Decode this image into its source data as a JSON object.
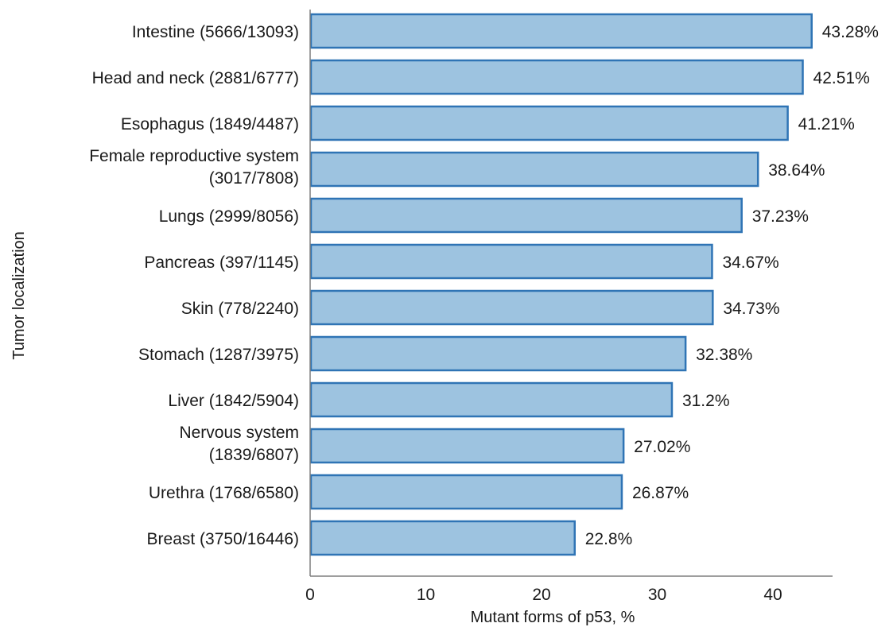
{
  "chart_data": {
    "type": "bar",
    "orientation": "horizontal",
    "categories": [
      [
        "Intestine (5666/13093)"
      ],
      [
        "Head and neck (2881/6777)"
      ],
      [
        "Esophagus (1849/4487)"
      ],
      [
        "Female reproductive system",
        "(3017/7808)"
      ],
      [
        "Lungs (2999/8056)"
      ],
      [
        "Pancreas (397/1145)"
      ],
      [
        "Skin (778/2240)"
      ],
      [
        "Stomach (1287/3975)"
      ],
      [
        "Liver (1842/5904)"
      ],
      [
        "Nervous system",
        "(1839/6807)"
      ],
      [
        "Urethra (1768/6580)"
      ],
      [
        "Breast (3750/16446)"
      ]
    ],
    "values": [
      43.28,
      42.51,
      41.21,
      38.64,
      37.23,
      34.67,
      34.73,
      32.38,
      31.2,
      27.02,
      26.87,
      22.8
    ],
    "value_labels": [
      "43.28%",
      "42.51%",
      "41.21%",
      "38.64%",
      "37.23%",
      "34.67%",
      "34.73%",
      "32.38%",
      "31.2%",
      "27.02%",
      "26.87%",
      "22.8%"
    ],
    "xlabel": "Mutant forms of p53, %",
    "ylabel": "Tumor localization",
    "xlim": [
      0,
      46
    ],
    "xticks": [
      0,
      10,
      20,
      30,
      40
    ],
    "grid": false,
    "bar_fill": "#9dc3e0",
    "bar_stroke": "#2f74b5",
    "axis_color": "#7f7f7f"
  }
}
